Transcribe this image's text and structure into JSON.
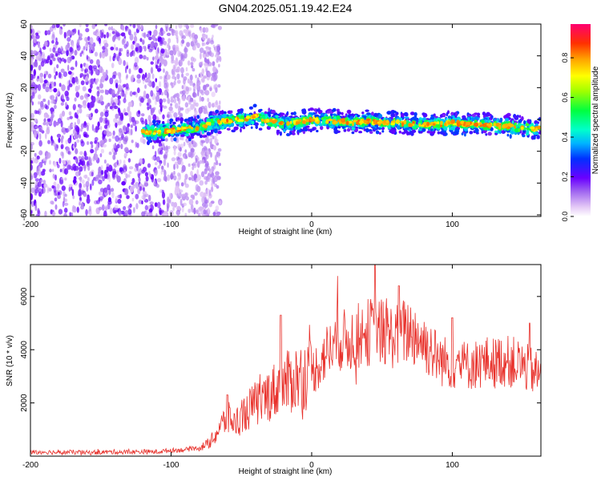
{
  "title": "GN04.2025.051.19.42.E24",
  "chart_data": [
    {
      "type": "heatmap",
      "xlabel": "Height of straight line (km)",
      "ylabel": "Frequency (Hz)",
      "xlim": [
        -200,
        163
      ],
      "ylim": [
        -61,
        60
      ],
      "xticks": [
        -200,
        -100,
        0,
        100
      ],
      "yticks": [
        -60,
        -40,
        -20,
        0,
        20,
        40,
        60
      ],
      "colorbar": {
        "label": "Normalized spectral amplitude",
        "range": [
          0,
          0.97
        ],
        "ticks": [
          0.0,
          0.2,
          0.4,
          0.6,
          0.8
        ]
      },
      "noise_region_x": [
        -200,
        -80
      ],
      "ridge": {
        "x": [
          -120,
          -110,
          -100,
          -90,
          -80,
          -70,
          -60,
          -50,
          -40,
          -30,
          -20,
          -10,
          0,
          10,
          20,
          30,
          40,
          50,
          60,
          70,
          80,
          90,
          100,
          110,
          120,
          130,
          140,
          150,
          160,
          163
        ],
        "freq": [
          -8,
          -8,
          -7,
          -6,
          -5,
          -2,
          -1,
          0,
          2,
          -1,
          -3,
          -2,
          0,
          -1,
          -1,
          -2,
          -1,
          -2,
          -2,
          -3,
          -3,
          -3,
          -2,
          -3,
          -3,
          -4,
          -4,
          -5,
          -6,
          -6
        ]
      }
    },
    {
      "type": "line",
      "xlabel": "Height of straight line (km)",
      "ylabel": "SNR (10 * v/v)",
      "xlim": [
        -200,
        163
      ],
      "ylim": [
        0,
        7200
      ],
      "xticks": [
        -200,
        -100,
        0,
        100
      ],
      "yticks": [
        2000,
        4000,
        6000
      ],
      "color": "#e8302a",
      "series": [
        {
          "x": [
            -200,
            -190,
            -180,
            -170,
            -160,
            -150,
            -140,
            -130,
            -120,
            -110,
            -100,
            -90,
            -80,
            -75,
            -70,
            -65,
            -60,
            -55,
            -50,
            -45,
            -40,
            -35,
            -30,
            -25,
            -20,
            -15,
            -10,
            -5,
            0,
            5,
            10,
            15,
            20,
            25,
            30,
            35,
            40,
            45,
            50,
            55,
            60,
            65,
            70,
            75,
            80,
            85,
            90,
            95,
            100,
            105,
            110,
            115,
            120,
            125,
            130,
            135,
            140,
            145,
            150,
            155,
            160,
            163
          ],
          "y": [
            150,
            160,
            140,
            150,
            130,
            150,
            160,
            150,
            170,
            160,
            220,
            240,
            320,
            420,
            650,
            1100,
            1450,
            1250,
            1450,
            1750,
            1950,
            2100,
            2350,
            2500,
            2600,
            2850,
            2950,
            3050,
            3150,
            3450,
            3850,
            4200,
            4400,
            4300,
            4450,
            4550,
            4650,
            4750,
            4650,
            4500,
            4550,
            4650,
            4700,
            4500,
            4250,
            4000,
            3650,
            3550,
            3450,
            3500,
            3400,
            3450,
            3450,
            3550,
            3500,
            3600,
            3550,
            3500,
            3400,
            3250,
            3100,
            3000
          ],
          "peaks": [
            [
              -60,
              2300
            ],
            [
              -22,
              5300
            ],
            [
              45,
              7200
            ],
            [
              62,
              6400
            ],
            [
              100,
              5200
            ],
            [
              155,
              5000
            ]
          ]
        }
      ]
    }
  ]
}
